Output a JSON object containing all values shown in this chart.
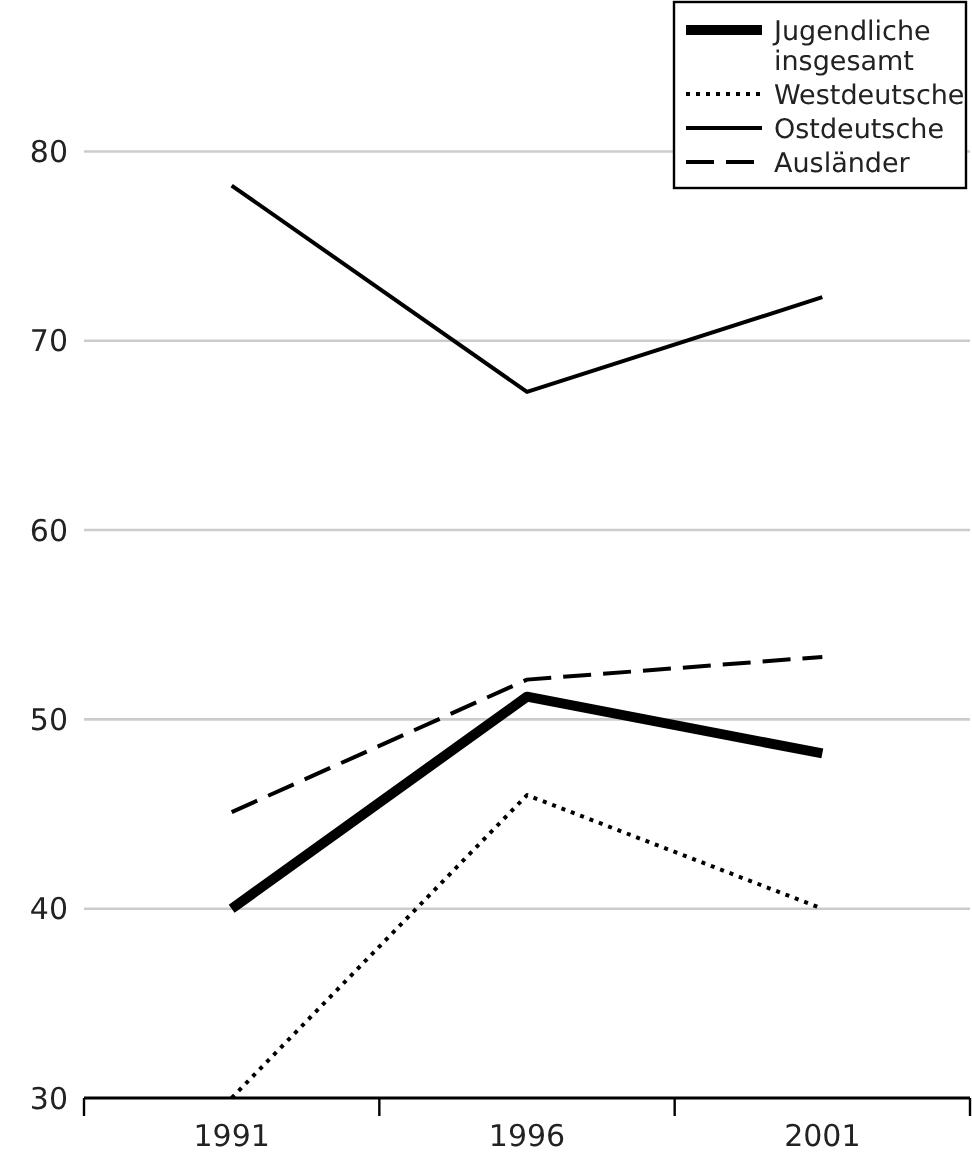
{
  "chart_data": {
    "type": "line",
    "categories": [
      "1991",
      "1996",
      "2001"
    ],
    "ylim": [
      30,
      88
    ],
    "yticks": [
      30,
      40,
      50,
      60,
      70,
      80
    ],
    "grid": "y",
    "legend": "top right",
    "series": [
      {
        "name": "Jugendliche insgesamt",
        "color": "#000000",
        "line_style": "solid",
        "values": [
          40,
          51.2,
          48.2
        ]
      },
      {
        "name": "Westdeutsche",
        "color": "#000000",
        "line_style": "dotted",
        "values": [
          30,
          46,
          40
        ]
      },
      {
        "name": "Ostdeutsche",
        "color": "#000000",
        "line_style": "solid",
        "values": [
          78.2,
          67.3,
          72.3
        ]
      },
      {
        "name": "Ausländer",
        "color": "#000000",
        "line_style": "dashed",
        "values": [
          45.1,
          52.1,
          53.3
        ]
      }
    ]
  }
}
